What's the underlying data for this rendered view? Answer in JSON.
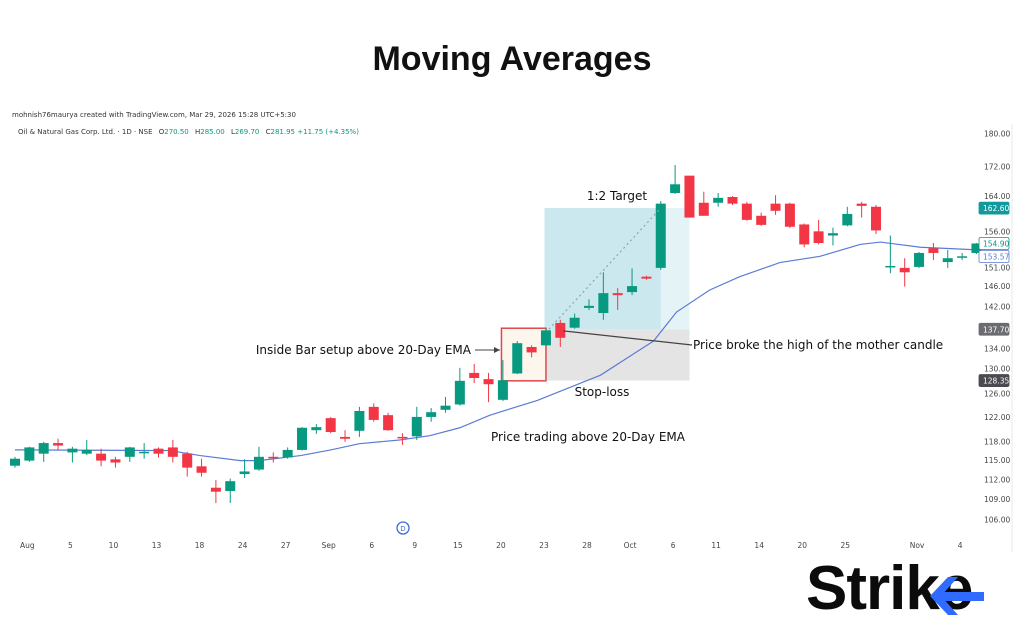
{
  "title": "Moving Averages",
  "credit": "mohnish76maurya created with TradingView.com, Mar 29, 2026 15:28 UTC+5:30",
  "symbol_line": {
    "name": "Oil & Natural Gas Corp. Ltd. · 1D · NSE",
    "open_label": "O",
    "open": "270.50",
    "high_label": "H",
    "high": "285.00",
    "low_label": "L",
    "low": "269.70",
    "close_label": "C",
    "close": "281.95",
    "change": "+11.75 (+4.35%)"
  },
  "logo": {
    "text": "Strike",
    "accent": "#2f6bff"
  },
  "chart_data": {
    "type": "candlestick",
    "y_scale": "log",
    "ylim": [
      106,
      180
    ],
    "grid": false,
    "colors": {
      "up": "#089981",
      "down": "#f23645",
      "ema": "#5b7bd5"
    },
    "y_ticks": [
      "180.00",
      "172.00",
      "164.00",
      "156.00",
      "151.00",
      "146.00",
      "142.00",
      "134.00",
      "130.00",
      "126.00",
      "122.00",
      "118.00",
      "115.00",
      "112.00",
      "109.00",
      "106.00"
    ],
    "price_labels": [
      {
        "value": "162.60",
        "style": "teal"
      },
      {
        "value": "154.90",
        "style": "green-outline"
      },
      {
        "value": "153.57",
        "style": "blue-outline"
      },
      {
        "value": "137.70",
        "style": "gray"
      },
      {
        "value": "128.35",
        "style": "dark"
      }
    ],
    "x_labels": [
      {
        "bar": 1,
        "text": "Aug"
      },
      {
        "bar": 4,
        "text": "5"
      },
      {
        "bar": 7,
        "text": "10"
      },
      {
        "bar": 10,
        "text": "13"
      },
      {
        "bar": 13,
        "text": "18"
      },
      {
        "bar": 16,
        "text": "24"
      },
      {
        "bar": 19,
        "text": "27"
      },
      {
        "bar": 22,
        "text": "Sep"
      },
      {
        "bar": 25,
        "text": "6"
      },
      {
        "bar": 28,
        "text": "9"
      },
      {
        "bar": 31,
        "text": "15"
      },
      {
        "bar": 34,
        "text": "20"
      },
      {
        "bar": 37,
        "text": "23"
      },
      {
        "bar": 40,
        "text": "28"
      },
      {
        "bar": 43,
        "text": "Oct"
      },
      {
        "bar": 46,
        "text": "6"
      },
      {
        "bar": 49,
        "text": "11"
      },
      {
        "bar": 52,
        "text": "14"
      },
      {
        "bar": 55,
        "text": "20"
      },
      {
        "bar": 58,
        "text": "25"
      },
      {
        "bar": 63,
        "text": "Nov"
      },
      {
        "bar": 66,
        "text": "4"
      }
    ],
    "candles_ohlc": [
      [
        114.2,
        115.6,
        113.9,
        115.3
      ],
      [
        115.0,
        117.2,
        114.8,
        117.1
      ],
      [
        116.1,
        118.0,
        114.8,
        117.8
      ],
      [
        117.8,
        118.5,
        116.7,
        117.4
      ],
      [
        116.3,
        117.2,
        114.7,
        116.9
      ],
      [
        116.1,
        118.3,
        115.9,
        116.7
      ],
      [
        116.1,
        116.9,
        114.1,
        115.0
      ],
      [
        115.2,
        115.6,
        113.9,
        114.7
      ],
      [
        115.6,
        117.2,
        114.8,
        117.1
      ],
      [
        116.3,
        117.8,
        115.3,
        116.4
      ],
      [
        116.9,
        117.1,
        115.5,
        116.1
      ],
      [
        117.1,
        118.3,
        114.7,
        115.6
      ],
      [
        116.1,
        116.4,
        112.5,
        113.9
      ],
      [
        114.1,
        115.3,
        112.5,
        113.1
      ],
      [
        110.8,
        112.0,
        108.5,
        110.2
      ],
      [
        110.3,
        112.2,
        108.5,
        111.8
      ],
      [
        112.9,
        115.2,
        112.3,
        113.3
      ],
      [
        113.6,
        117.2,
        113.4,
        115.6
      ],
      [
        115.6,
        116.3,
        114.7,
        115.5
      ],
      [
        115.5,
        117.1,
        115.3,
        116.7
      ],
      [
        116.7,
        120.4,
        116.6,
        120.3
      ],
      [
        119.9,
        120.9,
        119.3,
        120.4
      ],
      [
        121.9,
        122.1,
        119.4,
        119.6
      ],
      [
        118.8,
        119.9,
        118.0,
        118.5
      ],
      [
        119.8,
        123.8,
        118.8,
        123.1
      ],
      [
        123.8,
        124.4,
        121.3,
        121.6
      ],
      [
        122.4,
        122.8,
        119.8,
        119.9
      ],
      [
        118.8,
        119.4,
        117.5,
        118.7
      ],
      [
        118.9,
        123.8,
        118.3,
        122.1
      ],
      [
        122.1,
        123.6,
        121.3,
        122.9
      ],
      [
        123.3,
        125.5,
        122.8,
        124.0
      ],
      [
        124.2,
        130.6,
        124.0,
        128.3
      ],
      [
        129.7,
        131.3,
        127.9,
        128.8
      ],
      [
        128.6,
        129.7,
        124.6,
        127.7
      ],
      [
        125.0,
        132.0,
        124.8,
        128.4
      ],
      [
        129.6,
        135.5,
        129.5,
        135.1
      ],
      [
        134.4,
        134.7,
        132.5,
        133.4
      ],
      [
        134.7,
        137.9,
        134.6,
        137.5
      ],
      [
        138.9,
        139.5,
        134.4,
        136.1
      ],
      [
        138.0,
        140.7,
        137.8,
        139.9
      ],
      [
        141.8,
        143.5,
        141.4,
        142.2
      ],
      [
        140.8,
        148.9,
        139.5,
        144.7
      ],
      [
        144.7,
        145.7,
        141.4,
        144.3
      ],
      [
        144.9,
        149.7,
        144.3,
        146.1
      ],
      [
        148.0,
        148.2,
        147.4,
        147.6
      ],
      [
        149.8,
        164.2,
        149.4,
        163.6
      ],
      [
        166.0,
        172.5,
        165.8,
        168.0
      ],
      [
        170.0,
        170.0,
        160.5,
        160.5
      ],
      [
        163.8,
        166.3,
        160.9,
        160.9
      ],
      [
        163.8,
        166.0,
        162.9,
        164.9
      ],
      [
        165.1,
        165.3,
        163.3,
        163.6
      ],
      [
        163.6,
        164.0,
        159.8,
        160.0
      ],
      [
        160.9,
        161.6,
        158.7,
        158.9
      ],
      [
        163.6,
        165.5,
        161.1,
        162.0
      ],
      [
        163.6,
        163.8,
        158.2,
        158.5
      ],
      [
        159.0,
        159.2,
        154.1,
        154.7
      ],
      [
        157.5,
        160.0,
        154.7,
        155.0
      ],
      [
        156.6,
        158.3,
        154.5,
        157.1
      ],
      [
        158.8,
        162.9,
        158.6,
        161.3
      ],
      [
        163.6,
        164.0,
        160.5,
        163.1
      ],
      [
        162.9,
        163.3,
        156.9,
        157.7
      ],
      [
        150.0,
        156.6,
        148.7,
        150.2
      ],
      [
        149.8,
        151.8,
        146.0,
        148.9
      ],
      [
        150.0,
        153.1,
        149.8,
        152.9
      ],
      [
        153.9,
        155.0,
        151.4,
        152.9
      ],
      [
        151.0,
        153.5,
        149.8,
        151.8
      ],
      [
        152.0,
        152.9,
        151.4,
        152.2
      ],
      [
        152.9,
        155.0,
        152.7,
        154.9
      ]
    ],
    "ema_points": [
      [
        0,
        116.7
      ],
      [
        10.8,
        116.6
      ],
      [
        12.9,
        115.8
      ],
      [
        15.7,
        115.0
      ],
      [
        17,
        115.0
      ],
      [
        19.9,
        115.8
      ],
      [
        22,
        116.7
      ],
      [
        24,
        117.7
      ],
      [
        26.8,
        118.3
      ],
      [
        28.9,
        119.0
      ],
      [
        31,
        120.3
      ],
      [
        33.1,
        122.4
      ],
      [
        36.4,
        124.9
      ],
      [
        40.8,
        129.3
      ],
      [
        44.5,
        135.5
      ],
      [
        46.1,
        141.0
      ],
      [
        48.4,
        145.3
      ],
      [
        50.5,
        148.0
      ],
      [
        53.3,
        150.9
      ],
      [
        56.1,
        152.2
      ],
      [
        58.9,
        154.7
      ],
      [
        60.3,
        155.2
      ],
      [
        63.1,
        154.1
      ],
      [
        66.9,
        153.57
      ]
    ],
    "annotations": {
      "target_zone": {
        "from_bar": 36.9,
        "to_bar": 47,
        "top": 162.6,
        "bottom": 137.7,
        "label": "1:2 Target"
      },
      "stop_zone": {
        "from_bar": 36.9,
        "to_bar": 47,
        "top": 137.7,
        "bottom": 128.35,
        "label": "Stop-loss"
      },
      "inside_bar_box": {
        "from_bar": 33.9,
        "to_bar": 37,
        "top": 137.9,
        "bottom": 128.3,
        "label": "Inside Bar setup above 20-Day EMA"
      },
      "breakout_note": "Price broke the high of the mother candle",
      "trend_note": "Price trading above 20-Day EMA",
      "dividend_marker": "D"
    }
  }
}
